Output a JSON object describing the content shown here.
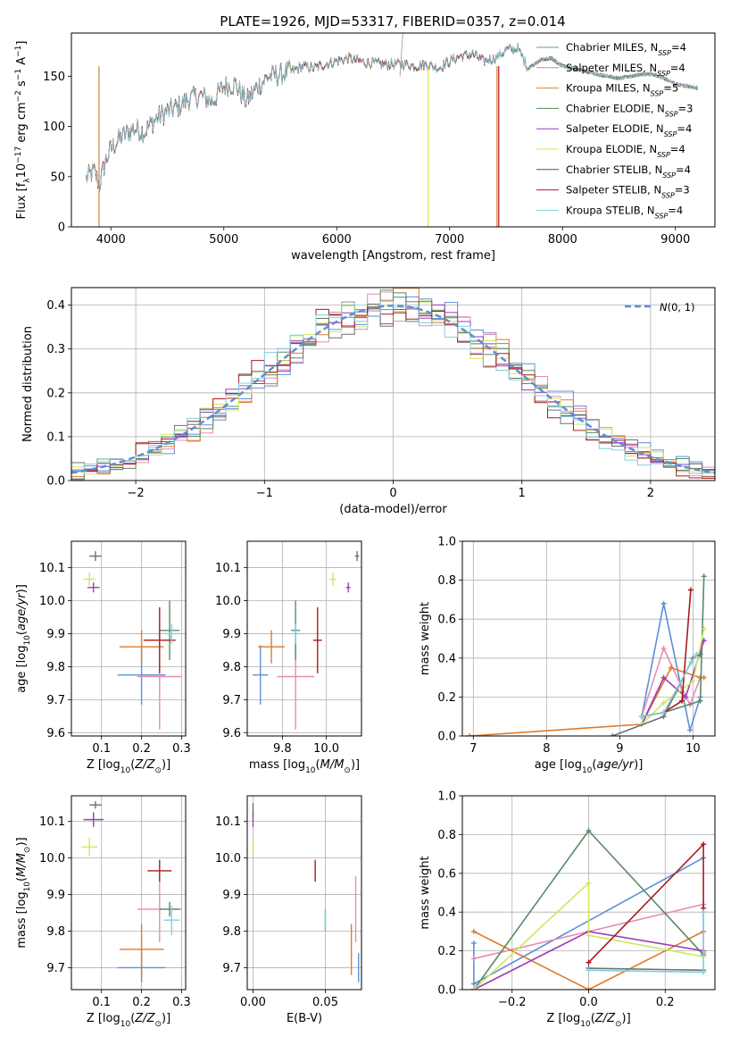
{
  "figure": {
    "title": "PLATE=1926, MJD=53317, FIBERID=0357, z=0.014"
  },
  "legend_labels": [
    "Chabrier MILES, N_SSP=4",
    "Salpeter MILES, N_SSP=4",
    "Kroupa MILES, N_SSP=5",
    "Chabrier ELODIE, N_SSP=3",
    "Salpeter ELODIE, N_SSP=4",
    "Kroupa ELODIE, N_SSP=4",
    "Chabrier STELIB, N_SSP=4",
    "Salpeter STELIB, N_SSP=3",
    "Kroupa STELIB, N_SSP=4"
  ],
  "colors": {
    "model_colors": [
      "#5f9ea0",
      "#e377c2",
      "#d9822b",
      "#4d8a5a",
      "#9a3bb5",
      "#d2e64f",
      "#555555",
      "#b2182b",
      "#7fd4e0"
    ],
    "plot_colors": [
      "#5f8fd8",
      "#e68cb4",
      "#e07a2a",
      "#5a8a68",
      "#9b3cb8",
      "#cfe860",
      "#707070",
      "#a81c1c",
      "#7fd0e0"
    ],
    "normal_curve": "#5b8fd6"
  },
  "chart_data": [
    {
      "id": "spectrum",
      "type": "line",
      "title": "PLATE=1926, MJD=53317, FIBERID=0357, z=0.014",
      "xlabel": "wavelength [Angstrom, rest frame]",
      "ylabel": "Flux [f_λ 10^-17 erg cm^-2 s^-1 A^-1]",
      "xlim": [
        3650,
        9350
      ],
      "ylim": [
        0,
        193
      ],
      "xticks": [
        4000,
        5000,
        6000,
        7000,
        8000,
        9000
      ],
      "yticks": [
        0,
        50,
        100,
        150
      ],
      "legend": "top-right",
      "x": [
        3780,
        3850,
        3900,
        3950,
        4000,
        4100,
        4200,
        4300,
        4400,
        4500,
        4600,
        4700,
        4800,
        4900,
        5000,
        5100,
        5200,
        5300,
        5400,
        5500,
        5600,
        5700,
        5800,
        5900,
        6000,
        6100,
        6200,
        6300,
        6400,
        6500,
        6600,
        6700,
        6800,
        6900,
        7000,
        7100,
        7200,
        7300,
        7400,
        7500,
        7600,
        7700,
        7800,
        7900,
        8000,
        8100,
        8200,
        8300,
        8400,
        8500,
        8600,
        8700,
        8800,
        8900,
        9000,
        9100,
        9200
      ],
      "y": [
        48,
        55,
        42,
        65,
        78,
        90,
        98,
        95,
        108,
        115,
        120,
        128,
        130,
        125,
        140,
        142,
        125,
        140,
        150,
        152,
        155,
        160,
        158,
        162,
        165,
        168,
        165,
        163,
        162,
        162,
        162,
        160,
        162,
        158,
        165,
        170,
        172,
        165,
        168,
        176,
        178,
        158,
        166,
        168,
        160,
        158,
        155,
        152,
        150,
        148,
        150,
        152,
        152,
        148,
        142,
        140,
        138
      ],
      "notes": "nine overlapping model spectra"
    },
    {
      "id": "residuals",
      "type": "histogram",
      "xlabel": "(data-model)/error",
      "ylabel": "Normed distribution",
      "xlim": [
        -2.5,
        2.5
      ],
      "ylim": [
        0,
        0.44
      ],
      "xticks": [
        -2,
        -1,
        0,
        1,
        2
      ],
      "yticks": [
        0.0,
        0.1,
        0.2,
        0.3,
        0.4
      ],
      "legend": "top-right",
      "normal_curve_label": "N(0,1)",
      "bin_width": 0.1
    },
    {
      "id": "age-vs-Z",
      "type": "scatter",
      "xlabel": "Z [log10(Z/Z_sun)]",
      "ylabel": "age [log10(age/yr)]",
      "xlim": [
        0.025,
        0.31
      ],
      "ylim": [
        9.59,
        10.18
      ],
      "xticks": [
        0.1,
        0.2,
        0.3
      ],
      "yticks": [
        9.6,
        9.7,
        9.8,
        9.9,
        10.0,
        10.1
      ],
      "points": [
        {
          "x": 0.2,
          "y": 9.775,
          "xerr": 0.06,
          "yerr": 0.09
        },
        {
          "x": 0.245,
          "y": 9.77,
          "xerr": 0.055,
          "yerr": 0.16
        },
        {
          "x": 0.2,
          "y": 9.86,
          "xerr": 0.055,
          "yerr": 0.05
        },
        {
          "x": 0.27,
          "y": 9.91,
          "xerr": 0.025,
          "yerr": 0.09
        },
        {
          "x": 0.08,
          "y": 10.04,
          "xerr": 0.015,
          "yerr": 0.015
        },
        {
          "x": 0.07,
          "y": 10.065,
          "xerr": 0.015,
          "yerr": 0.02
        },
        {
          "x": 0.085,
          "y": 10.135,
          "xerr": 0.015,
          "yerr": 0.015
        },
        {
          "x": 0.245,
          "y": 9.88,
          "xerr": 0.04,
          "yerr": 0.1
        },
        {
          "x": 0.275,
          "y": 9.9,
          "xerr": 0.02,
          "yerr": 0.03
        }
      ]
    },
    {
      "id": "age-vs-mass",
      "type": "scatter",
      "xlabel": "mass [log10(M/M_sun)]",
      "ylabel": "",
      "xlim": [
        9.64,
        10.16
      ],
      "ylim": [
        9.59,
        10.18
      ],
      "xticks": [
        9.8,
        10.0
      ],
      "yticks": [
        9.6,
        9.7,
        9.8,
        9.9,
        10.0,
        10.1
      ],
      "points": [
        {
          "x": 9.7,
          "y": 9.775,
          "xerr": 0.035,
          "yerr": 0.09
        },
        {
          "x": 9.86,
          "y": 9.77,
          "xerr": 0.085,
          "yerr": 0.16
        },
        {
          "x": 9.75,
          "y": 9.86,
          "xerr": 0.06,
          "yerr": 0.05
        },
        {
          "x": 9.86,
          "y": 9.91,
          "xerr": 0.02,
          "yerr": 0.09
        },
        {
          "x": 10.1,
          "y": 10.04,
          "xerr": 0.01,
          "yerr": 0.015
        },
        {
          "x": 10.03,
          "y": 10.065,
          "xerr": 0.015,
          "yerr": 0.02
        },
        {
          "x": 10.14,
          "y": 10.135,
          "xerr": 0.01,
          "yerr": 0.015
        },
        {
          "x": 9.96,
          "y": 9.88,
          "xerr": 0.02,
          "yerr": 0.1
        },
        {
          "x": 9.86,
          "y": 9.9,
          "xerr": 0.02,
          "yerr": 0.03
        }
      ]
    },
    {
      "id": "weight-vs-age",
      "type": "line",
      "xlabel": "age [log10(age/yr)]",
      "ylabel": "mass weight",
      "xlim": [
        6.85,
        10.3
      ],
      "ylim": [
        0,
        1
      ],
      "xticks": [
        7,
        8,
        9,
        10
      ],
      "yticks": [
        0.0,
        0.2,
        0.4,
        0.6,
        0.8,
        1.0
      ],
      "series": [
        {
          "x": [
            9.3,
            9.6,
            9.96,
            10.1
          ],
          "y": [
            0.1,
            0.68,
            0.03,
            0.2
          ]
        },
        {
          "x": [
            9.3,
            9.6,
            9.96,
            10.1
          ],
          "y": [
            0.1,
            0.45,
            0.16,
            0.3
          ]
        },
        {
          "x": [
            6.95,
            9.3,
            9.7,
            10.1,
            10.15
          ],
          "y": [
            0.0,
            0.06,
            0.35,
            0.3,
            0.3
          ]
        },
        {
          "x": [
            9.3,
            9.6,
            10.1,
            10.15
          ],
          "y": [
            0.1,
            0.12,
            0.18,
            0.82
          ]
        },
        {
          "x": [
            9.3,
            9.6,
            9.9,
            10.15
          ],
          "y": [
            0.06,
            0.3,
            0.2,
            0.49
          ]
        },
        {
          "x": [
            9.3,
            9.6,
            10.0,
            10.15
          ],
          "y": [
            0.06,
            0.17,
            0.28,
            0.55
          ]
        },
        {
          "x": [
            8.9,
            9.6,
            10.0,
            10.1
          ],
          "y": [
            0.0,
            0.1,
            0.4,
            0.42
          ]
        },
        {
          "x": [
            9.3,
            9.6,
            9.85,
            9.97
          ],
          "y": [
            0.1,
            0.12,
            0.18,
            0.75
          ]
        },
        {
          "x": [
            9.3,
            9.6,
            9.98,
            10.05
          ],
          "y": [
            0.1,
            0.12,
            0.38,
            0.42
          ]
        }
      ]
    },
    {
      "id": "mass-vs-Z",
      "type": "scatter",
      "xlabel": "Z [log10(Z/Z_sun)]",
      "ylabel": "mass [log10(M/M_sun)]",
      "xlim": [
        0.025,
        0.31
      ],
      "ylim": [
        9.64,
        10.17
      ],
      "xticks": [
        0.1,
        0.2,
        0.3
      ],
      "yticks": [
        9.7,
        9.8,
        9.9,
        10.0,
        10.1
      ],
      "points": [
        {
          "x": 0.2,
          "y": 9.7,
          "xerr": 0.06,
          "yerr": 0.04
        },
        {
          "x": 0.245,
          "y": 9.86,
          "xerr": 0.055,
          "yerr": 0.09
        },
        {
          "x": 0.2,
          "y": 9.75,
          "xerr": 0.055,
          "yerr": 0.07
        },
        {
          "x": 0.27,
          "y": 9.86,
          "xerr": 0.025,
          "yerr": 0.02
        },
        {
          "x": 0.08,
          "y": 10.105,
          "xerr": 0.025,
          "yerr": 0.02
        },
        {
          "x": 0.07,
          "y": 10.03,
          "xerr": 0.02,
          "yerr": 0.025
        },
        {
          "x": 0.085,
          "y": 10.145,
          "xerr": 0.015,
          "yerr": 0.01
        },
        {
          "x": 0.245,
          "y": 9.965,
          "xerr": 0.03,
          "yerr": 0.03
        },
        {
          "x": 0.275,
          "y": 9.83,
          "xerr": 0.02,
          "yerr": 0.04
        }
      ]
    },
    {
      "id": "mass-vs-ebv",
      "type": "scatter",
      "xlabel": "E(B-V)",
      "ylabel": "",
      "xlim": [
        -0.004,
        0.075
      ],
      "ylim": [
        9.64,
        10.17
      ],
      "xticks": [
        0.0,
        0.05
      ],
      "yticks": [
        9.7,
        9.8,
        9.9,
        10.0,
        10.1
      ],
      "points": [
        {
          "x": 0.073,
          "y": 9.7,
          "xerr": 0.0,
          "yerr": 0.04
        },
        {
          "x": 0.071,
          "y": 9.86,
          "xerr": 0.0,
          "yerr": 0.09
        },
        {
          "x": 0.068,
          "y": 9.75,
          "xerr": 0.0,
          "yerr": 0.07
        },
        {
          "x": 0.05,
          "y": 9.83,
          "xerr": 0.0,
          "yerr": 0.03
        },
        {
          "x": 0.0,
          "y": 10.105,
          "xerr": 0.0,
          "yerr": 0.02
        },
        {
          "x": 0.0,
          "y": 10.03,
          "xerr": 0.0,
          "yerr": 0.025
        },
        {
          "x": 0.0,
          "y": 10.13,
          "xerr": 0.0,
          "yerr": 0.02
        },
        {
          "x": 0.043,
          "y": 9.965,
          "xerr": 0.0,
          "yerr": 0.03
        },
        {
          "x": 0.05,
          "y": 9.83,
          "xerr": 0.0,
          "yerr": 0.03
        }
      ]
    },
    {
      "id": "weight-vs-Z",
      "type": "line",
      "xlabel": "Z [log10(Z/Z_sun)]",
      "ylabel": "mass weight",
      "xlim": [
        -0.33,
        0.33
      ],
      "ylim": [
        0,
        1
      ],
      "xticks": [
        -0.2,
        0.0,
        0.2
      ],
      "yticks": [
        0.0,
        0.2,
        0.4,
        0.6,
        0.8,
        1.0
      ],
      "series": [
        {
          "x": [
            -0.3,
            -0.3,
            0.3
          ],
          "y": [
            0.24,
            0.03,
            0.68
          ]
        },
        {
          "x": [
            -0.3,
            0.3,
            0.3
          ],
          "y": [
            0.16,
            0.44,
            0.19
          ]
        },
        {
          "x": [
            -0.3,
            0.0,
            0.3
          ],
          "y": [
            0.3,
            0.0,
            0.3
          ]
        },
        {
          "x": [
            -0.3,
            0.0,
            0.3
          ],
          "y": [
            0.0,
            0.82,
            0.18
          ]
        },
        {
          "x": [
            -0.3,
            0.0,
            0.3
          ],
          "y": [
            0.0,
            0.3,
            0.2
          ]
        },
        {
          "x": [
            -0.3,
            0.0,
            0.0,
            0.3
          ],
          "y": [
            0.0,
            0.55,
            0.28,
            0.17
          ]
        },
        {
          "x": [
            0.0,
            0.3
          ],
          "y": [
            0.11,
            0.1
          ]
        },
        {
          "x": [
            0.0,
            0.3,
            0.3
          ],
          "y": [
            0.14,
            0.75,
            0.42
          ]
        },
        {
          "x": [
            0.0,
            0.3,
            0.3
          ],
          "y": [
            0.1,
            0.09,
            0.4
          ]
        }
      ]
    }
  ]
}
